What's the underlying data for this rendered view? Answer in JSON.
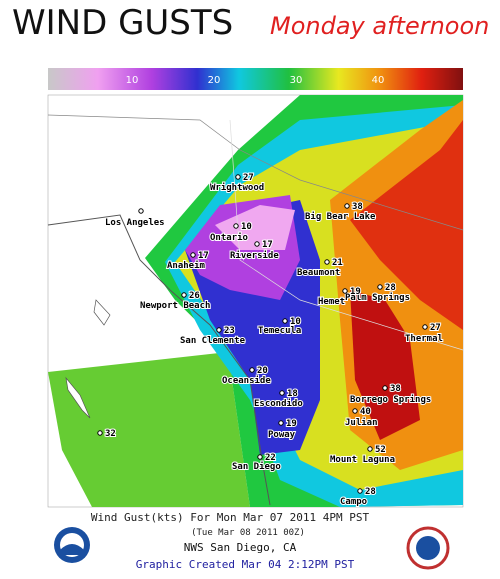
{
  "header": {
    "title": "WIND GUSTS",
    "subtitle": "Monday afternoon"
  },
  "colorbar": {
    "ticks": [
      10,
      20,
      30,
      40
    ]
  },
  "stations": [
    {
      "name": "Wrightwood",
      "gust": 27
    },
    {
      "name": "Big Bear Lake",
      "gust": 38
    },
    {
      "name": "Los Angeles"
    },
    {
      "name": "Ontario",
      "gust": 10
    },
    {
      "name": "Riverside",
      "gust": 17
    },
    {
      "name": "Anaheim",
      "gust": 17
    },
    {
      "name": "Beaumont",
      "gust": 21
    },
    {
      "name": "Palm Springs",
      "gust": 28
    },
    {
      "name": "Hemet",
      "gust": 19
    },
    {
      "name": "Newport Beach",
      "gust": 26
    },
    {
      "name": "Temecula",
      "gust": 10
    },
    {
      "name": "San Clemente",
      "gust": 23
    },
    {
      "name": "Thermal",
      "gust": 27
    },
    {
      "name": "Oceanside",
      "gust": 20
    },
    {
      "name": "Escondido",
      "gust": 18
    },
    {
      "name": "Borrego Springs",
      "gust": 38
    },
    {
      "name": "Julian",
      "gust": 40
    },
    {
      "name": "Poway",
      "gust": 19
    },
    {
      "name": "Mount Laguna",
      "gust": 52
    },
    {
      "name": "San Diego",
      "gust": 22
    },
    {
      "name": "Campo",
      "gust": 28
    },
    {
      "gust": 32
    }
  ],
  "footer": {
    "line1": "Wind Gust(kts) For Mon Mar 07 2011   4PM PST",
    "line2": "(Tue Mar 08 2011 00Z)",
    "office": "NWS San Diego, CA",
    "created": "Graphic Created Mar 04  2:12PM PST"
  }
}
